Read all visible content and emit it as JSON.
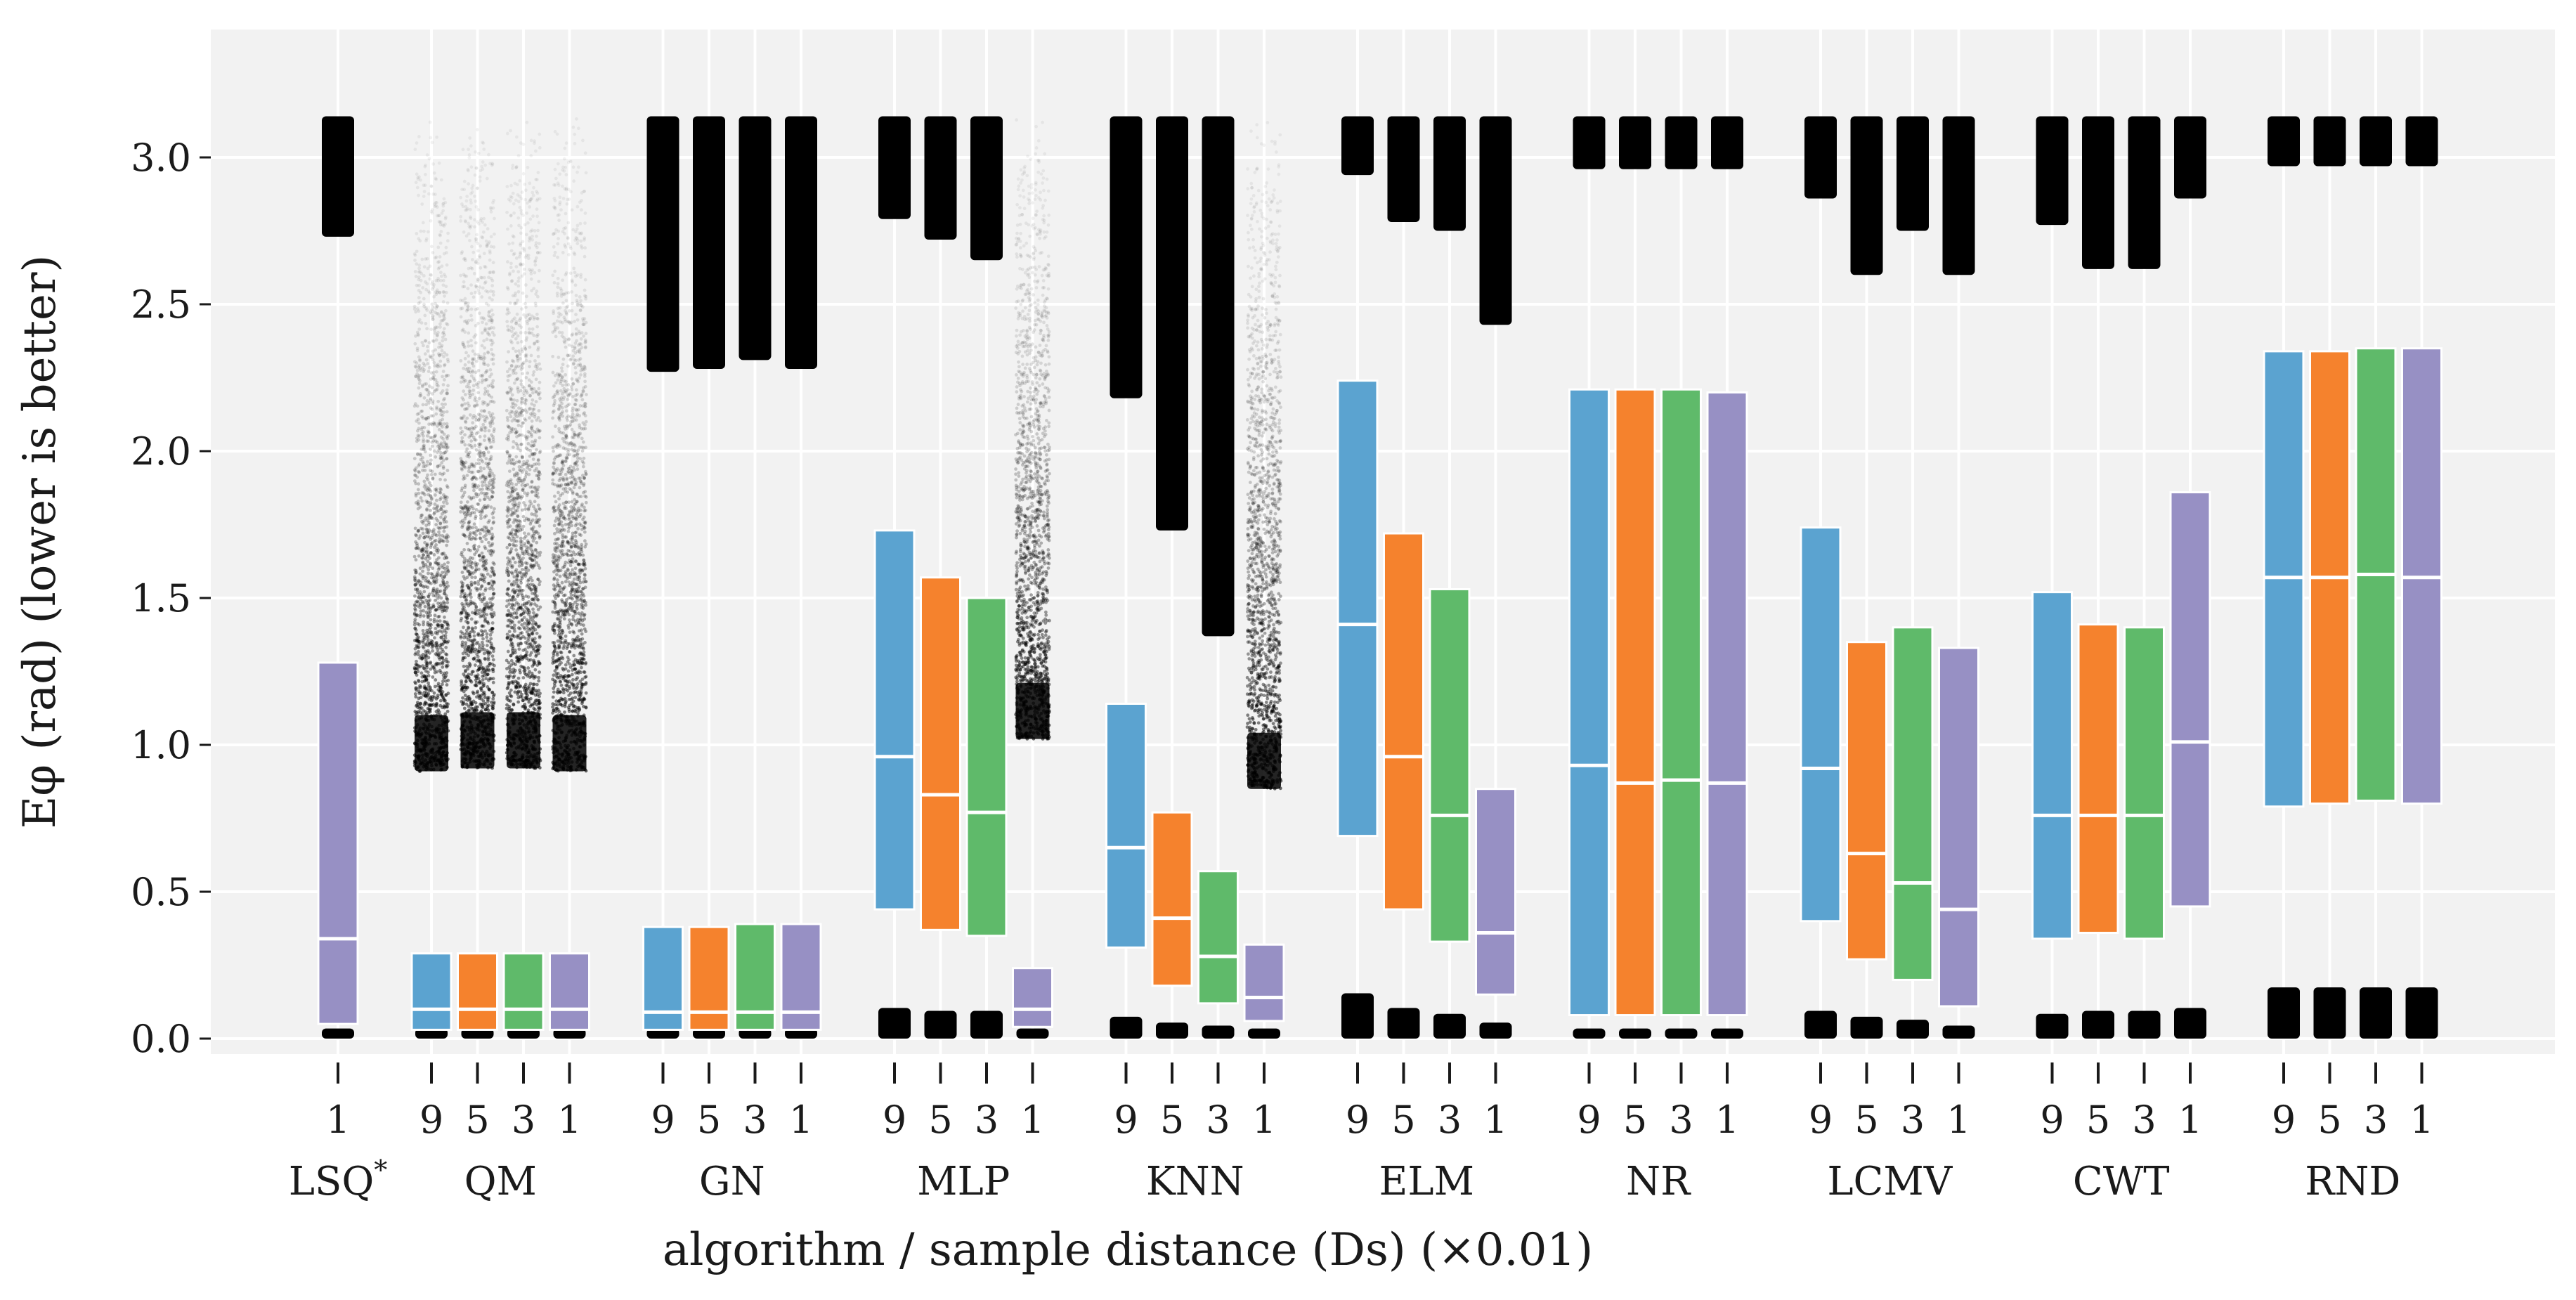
{
  "chart_data": {
    "type": "boxplot",
    "title": "",
    "xlabel": "algorithm / sample distance (Ds) (×0.01)",
    "ylabel": "Eφ (rad) (lower is better)",
    "ylim": [
      -0.04,
      3.42
    ],
    "yticks": [
      "0.0",
      "0.5",
      "1.0",
      "1.5",
      "2.0",
      "2.5",
      "3.0"
    ],
    "ytick_values": [
      0,
      0.5,
      1.0,
      1.5,
      2.0,
      2.5,
      3.0
    ],
    "grid": true,
    "colors": {
      "9": "#5ba3d0",
      "5": "#f5822d",
      "3": "#5fba6a",
      "1": "#9790c4",
      "median": "#ffffff",
      "outlier": "#000000",
      "background": "#f2f2f2",
      "grid": "#ffffff"
    },
    "groups": [
      {
        "name": "LSQ*",
        "label_main": "LSQ",
        "label_sup": "*",
        "series": [
          {
            "ds": "1",
            "q1": 0.05,
            "median": 0.34,
            "q3": 1.28,
            "low_out": [
              0.0,
              0.02
            ],
            "high_out": [
              2.73,
              3.14
            ],
            "density": 1.0
          }
        ]
      },
      {
        "name": "QM",
        "series": [
          {
            "ds": "9",
            "q1": 0.03,
            "median": 0.1,
            "q3": 0.29,
            "low_out": [
              0.0,
              0.02
            ],
            "high_out": [
              0.91,
              3.14
            ],
            "density": 0.5
          },
          {
            "ds": "5",
            "q1": 0.03,
            "median": 0.1,
            "q3": 0.29,
            "low_out": [
              0.0,
              0.02
            ],
            "high_out": [
              0.92,
              3.14
            ],
            "density": 0.5
          },
          {
            "ds": "3",
            "q1": 0.03,
            "median": 0.1,
            "q3": 0.29,
            "low_out": [
              0.0,
              0.02
            ],
            "high_out": [
              0.92,
              3.14
            ],
            "density": 0.5
          },
          {
            "ds": "1",
            "q1": 0.03,
            "median": 0.1,
            "q3": 0.29,
            "low_out": [
              0.0,
              0.02
            ],
            "high_out": [
              0.91,
              3.14
            ],
            "density": 0.5
          }
        ]
      },
      {
        "name": "GN",
        "series": [
          {
            "ds": "9",
            "q1": 0.03,
            "median": 0.09,
            "q3": 0.38,
            "low_out": [
              0.0,
              0.02
            ],
            "high_out": [
              2.27,
              3.14
            ],
            "density": 1.0
          },
          {
            "ds": "5",
            "q1": 0.03,
            "median": 0.09,
            "q3": 0.38,
            "low_out": [
              0.0,
              0.02
            ],
            "high_out": [
              2.28,
              3.14
            ],
            "density": 1.0
          },
          {
            "ds": "3",
            "q1": 0.03,
            "median": 0.09,
            "q3": 0.39,
            "low_out": [
              0.0,
              0.02
            ],
            "high_out": [
              2.31,
              3.14
            ],
            "density": 1.0
          },
          {
            "ds": "1",
            "q1": 0.03,
            "median": 0.09,
            "q3": 0.39,
            "low_out": [
              0.0,
              0.02
            ],
            "high_out": [
              2.28,
              3.14
            ],
            "density": 1.0
          }
        ]
      },
      {
        "name": "MLP",
        "series": [
          {
            "ds": "9",
            "q1": 0.44,
            "median": 0.96,
            "q3": 1.73,
            "low_out": [
              0.0,
              0.09
            ],
            "high_out": [
              2.79,
              3.14
            ],
            "density": 1.0
          },
          {
            "ds": "5",
            "q1": 0.37,
            "median": 0.83,
            "q3": 1.57,
            "low_out": [
              0.0,
              0.08
            ],
            "high_out": [
              2.72,
              3.14
            ],
            "density": 1.0
          },
          {
            "ds": "3",
            "q1": 0.35,
            "median": 0.77,
            "q3": 1.5,
            "low_out": [
              0.0,
              0.08
            ],
            "high_out": [
              2.65,
              3.14
            ],
            "density": 1.0
          },
          {
            "ds": "1",
            "q1": 0.04,
            "median": 0.1,
            "q3": 0.24,
            "low_out": [
              0.0,
              0.02
            ],
            "high_out": [
              1.02,
              3.14
            ],
            "density": 0.6
          }
        ]
      },
      {
        "name": "KNN",
        "series": [
          {
            "ds": "9",
            "q1": 0.31,
            "median": 0.65,
            "q3": 1.14,
            "low_out": [
              0.0,
              0.06
            ],
            "high_out": [
              2.18,
              3.14
            ],
            "density": 1.0
          },
          {
            "ds": "5",
            "q1": 0.18,
            "median": 0.41,
            "q3": 0.77,
            "low_out": [
              0.0,
              0.04
            ],
            "high_out": [
              1.73,
              3.14
            ],
            "density": 1.0
          },
          {
            "ds": "3",
            "q1": 0.12,
            "median": 0.28,
            "q3": 0.57,
            "low_out": [
              0.0,
              0.03
            ],
            "high_out": [
              1.37,
              3.14
            ],
            "density": 1.0
          },
          {
            "ds": "1",
            "q1": 0.06,
            "median": 0.14,
            "q3": 0.32,
            "low_out": [
              0.0,
              0.02
            ],
            "high_out": [
              0.85,
              3.14
            ],
            "density": 0.6
          }
        ]
      },
      {
        "name": "ELM",
        "series": [
          {
            "ds": "9",
            "q1": 0.69,
            "median": 1.41,
            "q3": 2.24,
            "low_out": [
              0.0,
              0.14
            ],
            "high_out": [
              2.94,
              3.14
            ],
            "density": 1.0
          },
          {
            "ds": "5",
            "q1": 0.44,
            "median": 0.96,
            "q3": 1.72,
            "low_out": [
              0.0,
              0.09
            ],
            "high_out": [
              2.78,
              3.14
            ],
            "density": 1.0
          },
          {
            "ds": "3",
            "q1": 0.33,
            "median": 0.76,
            "q3": 1.53,
            "low_out": [
              0.0,
              0.07
            ],
            "high_out": [
              2.75,
              3.14
            ],
            "density": 1.0
          },
          {
            "ds": "1",
            "q1": 0.15,
            "median": 0.36,
            "q3": 0.85,
            "low_out": [
              0.0,
              0.04
            ],
            "high_out": [
              2.43,
              3.14
            ],
            "density": 1.0
          }
        ]
      },
      {
        "name": "NR",
        "series": [
          {
            "ds": "9",
            "q1": 0.08,
            "median": 0.93,
            "q3": 2.21,
            "low_out": [
              0.0,
              0.02
            ],
            "high_out": [
              2.96,
              3.14
            ],
            "density": 1.0
          },
          {
            "ds": "5",
            "q1": 0.08,
            "median": 0.87,
            "q3": 2.21,
            "low_out": [
              0.0,
              0.02
            ],
            "high_out": [
              2.96,
              3.14
            ],
            "density": 1.0
          },
          {
            "ds": "3",
            "q1": 0.08,
            "median": 0.88,
            "q3": 2.21,
            "low_out": [
              0.0,
              0.02
            ],
            "high_out": [
              2.96,
              3.14
            ],
            "density": 1.0
          },
          {
            "ds": "1",
            "q1": 0.08,
            "median": 0.87,
            "q3": 2.2,
            "low_out": [
              0.0,
              0.02
            ],
            "high_out": [
              2.96,
              3.14
            ],
            "density": 1.0
          }
        ]
      },
      {
        "name": "LCMV",
        "series": [
          {
            "ds": "9",
            "q1": 0.4,
            "median": 0.92,
            "q3": 1.74,
            "low_out": [
              0.0,
              0.08
            ],
            "high_out": [
              2.86,
              3.14
            ],
            "density": 1.0
          },
          {
            "ds": "5",
            "q1": 0.27,
            "median": 0.63,
            "q3": 1.35,
            "low_out": [
              0.0,
              0.06
            ],
            "high_out": [
              2.6,
              3.14
            ],
            "density": 1.0
          },
          {
            "ds": "3",
            "q1": 0.2,
            "median": 0.53,
            "q3": 1.4,
            "low_out": [
              0.0,
              0.05
            ],
            "high_out": [
              2.75,
              3.14
            ],
            "density": 1.0
          },
          {
            "ds": "1",
            "q1": 0.11,
            "median": 0.44,
            "q3": 1.33,
            "low_out": [
              0.0,
              0.03
            ],
            "high_out": [
              2.6,
              3.14
            ],
            "density": 1.0
          }
        ]
      },
      {
        "name": "CWT",
        "series": [
          {
            "ds": "9",
            "q1": 0.34,
            "median": 0.76,
            "q3": 1.52,
            "low_out": [
              0.0,
              0.07
            ],
            "high_out": [
              2.77,
              3.14
            ],
            "density": 1.0
          },
          {
            "ds": "5",
            "q1": 0.36,
            "median": 0.76,
            "q3": 1.41,
            "low_out": [
              0.0,
              0.08
            ],
            "high_out": [
              2.62,
              3.14
            ],
            "density": 1.0
          },
          {
            "ds": "3",
            "q1": 0.34,
            "median": 0.76,
            "q3": 1.4,
            "low_out": [
              0.0,
              0.08
            ],
            "high_out": [
              2.62,
              3.14
            ],
            "density": 1.0
          },
          {
            "ds": "1",
            "q1": 0.45,
            "median": 1.01,
            "q3": 1.86,
            "low_out": [
              0.0,
              0.09
            ],
            "high_out": [
              2.86,
              3.14
            ],
            "density": 1.0
          }
        ]
      },
      {
        "name": "RND",
        "series": [
          {
            "ds": "9",
            "q1": 0.79,
            "median": 1.57,
            "q3": 2.34,
            "low_out": [
              0.0,
              0.16
            ],
            "high_out": [
              2.97,
              3.14
            ],
            "density": 1.0
          },
          {
            "ds": "5",
            "q1": 0.8,
            "median": 1.57,
            "q3": 2.34,
            "low_out": [
              0.0,
              0.16
            ],
            "high_out": [
              2.97,
              3.14
            ],
            "density": 1.0
          },
          {
            "ds": "3",
            "q1": 0.81,
            "median": 1.58,
            "q3": 2.35,
            "low_out": [
              0.0,
              0.16
            ],
            "high_out": [
              2.97,
              3.14
            ],
            "density": 1.0
          },
          {
            "ds": "1",
            "q1": 0.8,
            "median": 1.57,
            "q3": 2.35,
            "low_out": [
              0.0,
              0.16
            ],
            "high_out": [
              2.97,
              3.14
            ],
            "density": 1.0
          }
        ]
      }
    ]
  }
}
